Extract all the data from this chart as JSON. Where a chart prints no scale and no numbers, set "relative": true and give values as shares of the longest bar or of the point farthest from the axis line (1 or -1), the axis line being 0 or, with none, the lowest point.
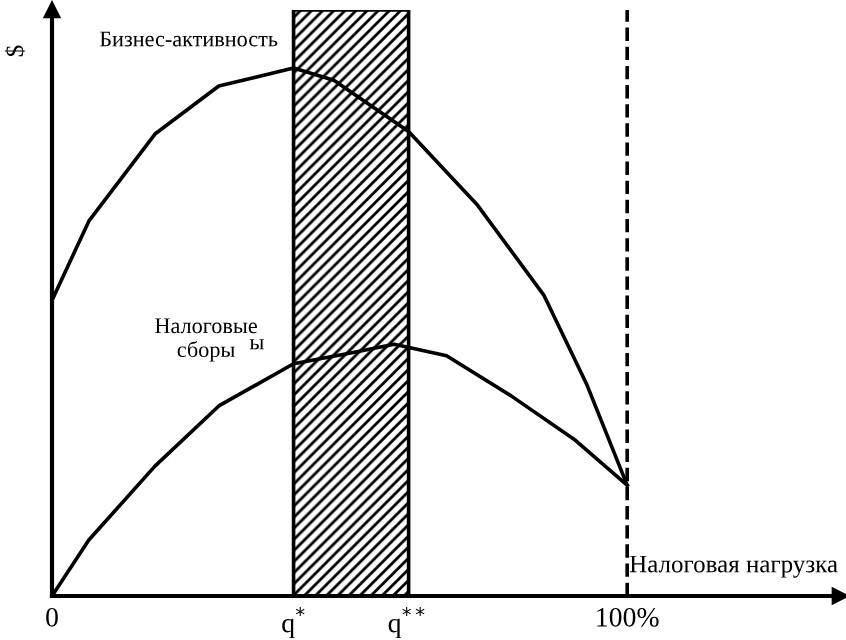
{
  "chart_data": {
    "type": "line",
    "relative": true,
    "ylabel": "$",
    "xlabel": "Налоговая нагрузка",
    "xlim": [
      0,
      137
    ],
    "xticks": [
      {
        "value": 0,
        "label": "0"
      },
      {
        "value": 42,
        "label": "q$^{*}$"
      },
      {
        "value": 62,
        "label": "q$^{**}$"
      },
      {
        "value": 100,
        "label": "100%"
      }
    ],
    "series": [
      {
        "name": "Бизнес-активность",
        "color": "#000000",
        "x": [
          0,
          6.4,
          17.9,
          29,
          42,
          49,
          62,
          74,
          85.5,
          93,
          100
        ],
        "values": [
          0.56,
          0.71,
          0.875,
          0.966,
          1.0,
          0.977,
          0.88,
          0.74,
          0.57,
          0.4,
          0.21
        ]
      },
      {
        "name": "Налоговые\nсборы",
        "color": "#000000",
        "x": [
          0,
          6.4,
          17.9,
          29,
          42,
          51.7,
          59.5,
          68.6,
          79.7,
          91,
          100
        ],
        "values": [
          0,
          0.106,
          0.246,
          0.36,
          0.44,
          0.46,
          0.477,
          0.455,
          0.38,
          0.295,
          0.21
        ]
      }
    ],
    "bands": [
      {
        "axis": "x",
        "from": 42,
        "to": 62,
        "color": "#000000"
      }
    ],
    "ref_lines": [
      {
        "axis": "x",
        "value": 100,
        "line_style": "dashed",
        "color": "#000000"
      }
    ],
    "annotations": [
      "ы"
    ],
    "grid": false,
    "legend": false,
    "marker": "none",
    "line_style": "solid"
  }
}
